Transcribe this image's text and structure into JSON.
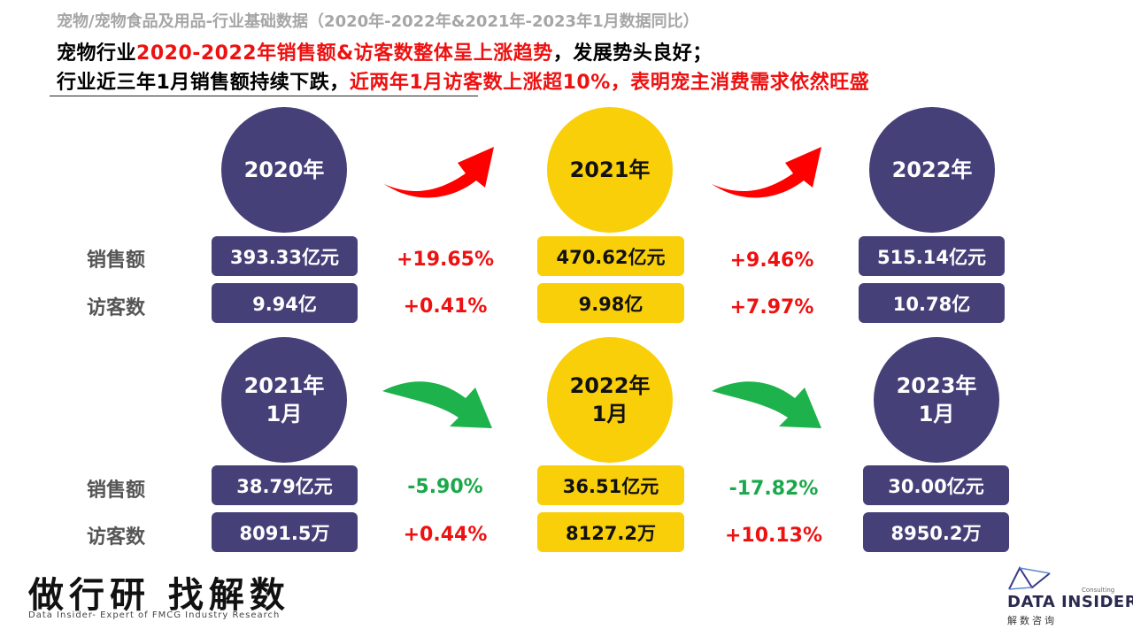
{
  "header": {
    "subtitle": "宠物/宠物食品及用品-行业基础数据（2020年-2022年&2021年-2023年1月数据同比）",
    "line1_a": "宠物行业",
    "line1_b": "2020-2022年销售额&访客数整体呈上涨趋势",
    "line1_c": "，发展势头良好；",
    "line2_a": "行业近三年1月销售额持续下跌，",
    "line2_b": "近两年1月访客数上涨超10%，表明宠主消费需求依然旺盛"
  },
  "annual": {
    "years": [
      {
        "label": "2020年",
        "sales": "393.33亿元",
        "visitors": "9.94亿",
        "color": "#454078"
      },
      {
        "label": "2021年",
        "sales": "470.62亿元",
        "visitors": "9.98亿",
        "color": "#f9cf0a"
      },
      {
        "label": "2022年",
        "sales": "515.14亿元",
        "visitors": "10.78亿",
        "color": "#454078"
      }
    ],
    "changes": [
      {
        "sales": "+19.65%",
        "visitors": "+0.41%"
      },
      {
        "sales": "+9.46%",
        "visitors": "+7.97%"
      }
    ],
    "arrow_color": "#ff0000"
  },
  "january": {
    "years": [
      {
        "label_year": "2021年",
        "label_month": "1月",
        "sales": "38.79亿元",
        "visitors": "8091.5万"
      },
      {
        "label_year": "2022年",
        "label_month": "1月",
        "sales": "36.51亿元",
        "visitors": "8127.2万"
      },
      {
        "label_year": "2023年",
        "label_month": "1月",
        "sales": "30.00亿元",
        "visitors": "8950.2万"
      }
    ],
    "changes": [
      {
        "sales": "-5.90%",
        "visitors": "+0.44%"
      },
      {
        "sales": "-17.82%",
        "visitors": "+10.13%"
      }
    ],
    "arrow_color": "#1db24c"
  },
  "labels": {
    "sales": "销售额",
    "visitors": "访客数"
  },
  "footer": {
    "slogan": "做行研 找解数",
    "slogan_en": "Data Insider- Expert of FMCG Industry Research",
    "logo_consulting": "Consulting",
    "logo_text": "DATA INSIDER",
    "logo_cn": "解数咨询"
  },
  "colors": {
    "navy": "#454078",
    "yellow": "#f9cf0a",
    "red": "#ee1111",
    "green": "#1aa84a"
  }
}
